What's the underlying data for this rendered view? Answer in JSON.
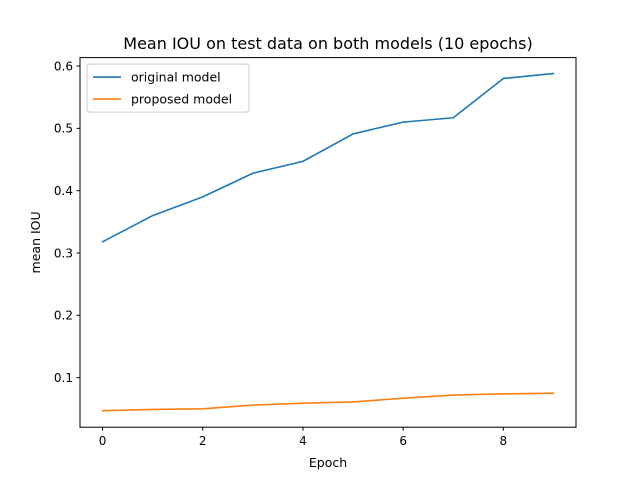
{
  "chart_data": {
    "type": "line",
    "title": "Mean IOU on test data on both models (10 epochs)",
    "xlabel": "Epoch",
    "ylabel": "mean IOU",
    "x": [
      0,
      1,
      2,
      3,
      4,
      5,
      6,
      7,
      8,
      9
    ],
    "xlim": [
      -0.45,
      9.45
    ],
    "ylim": [
      0.0205,
      0.6135
    ],
    "xticks": [
      0,
      2,
      4,
      6,
      8
    ],
    "yticks": [
      0.1,
      0.2,
      0.3,
      0.4,
      0.5,
      0.6
    ],
    "xtick_labels": [
      "0",
      "2",
      "4",
      "6",
      "8"
    ],
    "ytick_labels": [
      "0.1",
      "0.2",
      "0.3",
      "0.4",
      "0.5",
      "0.6"
    ],
    "grid": false,
    "legend_position": "upper-left",
    "series": [
      {
        "name": "original model",
        "color": "#1f77b4",
        "values": [
          0.318,
          0.36,
          0.39,
          0.428,
          0.447,
          0.491,
          0.51,
          0.517,
          0.58,
          0.588
        ]
      },
      {
        "name": "proposed model",
        "color": "#ff7f0e",
        "values": [
          0.047,
          0.049,
          0.05,
          0.056,
          0.059,
          0.061,
          0.067,
          0.072,
          0.074,
          0.075
        ]
      }
    ]
  }
}
